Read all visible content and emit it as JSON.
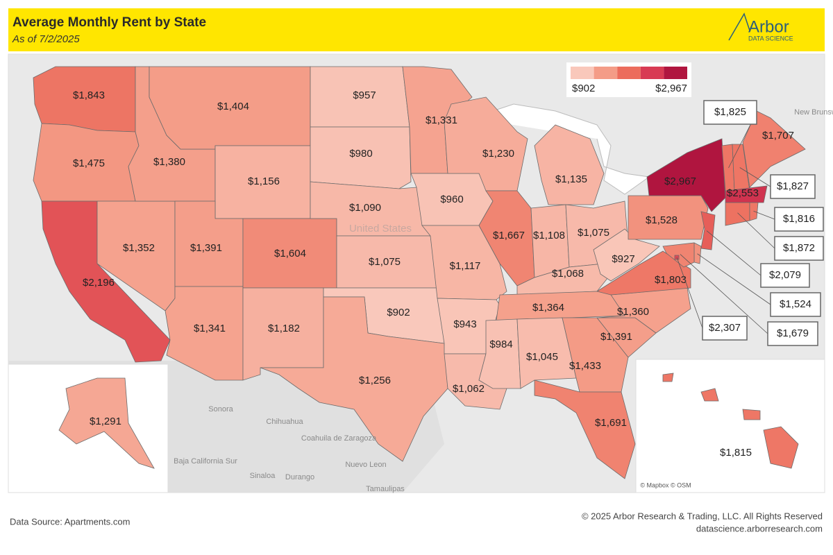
{
  "header": {
    "title": "Average Monthly Rent by State",
    "subtitle": "As of 7/2/2025",
    "logo": "Arbor",
    "logo_tagline": "DATA SCIENCE"
  },
  "chart_data": {
    "type": "choropleth",
    "values": [
      1843,
      1475,
      2196,
      1352,
      1380,
      1404,
      1156,
      1391,
      1341,
      1604,
      1182,
      957,
      980,
      1090,
      1075,
      902,
      1256,
      1331,
      960,
      1117,
      943,
      1062,
      1230,
      1667,
      1135,
      1108,
      1075,
      1068,
      1364,
      984,
      1045,
      1433,
      1691,
      1391,
      1360,
      1803,
      927,
      1528,
      2967,
      1707,
      1825,
      1827,
      2553,
      1872,
      1816,
      2079,
      1524,
      1679,
      2307,
      1291,
      1815
    ],
    "value_labels": [
      "$1,843",
      "$1,475",
      "$2,196",
      "$1,352",
      "$1,380",
      "$1,404",
      "$1,156",
      "$1,391",
      "$1,341",
      "$1,604",
      "$1,182",
      "$957",
      "$980",
      "$1,090",
      "$1,075",
      "$902",
      "$1,256",
      "$1,331",
      "$960",
      "$1,117",
      "$943",
      "$1,062",
      "$1,230",
      "$1,667",
      "$1,135",
      "$1,108",
      "$1,075",
      "$1,068",
      "$1,364",
      "$984",
      "$1,045",
      "$1,433",
      "$1,691",
      "$1,391",
      "$1,360",
      "$1,803",
      "$927",
      "$1,528",
      "$2,967",
      "$1,707",
      "$1,825",
      "$1,827",
      "$2,553",
      "$1,872",
      "$1,816",
      "$2,079",
      "$1,524",
      "$1,679",
      "$2,307",
      "$1,291",
      "$1,815"
    ],
    "colors": [
      "#f9c8bb",
      "#f49c87",
      "#ec6c5c",
      "#d83a53",
      "#b0153f"
    ],
    "legend_range": [
      {
        "value": 902,
        "label": "$902"
      },
      {
        "value": 2967,
        "label": "$2,967"
      }
    ]
  },
  "basemap_labels": [
    "United States",
    "Sonora",
    "Chihuahua",
    "Coahuila de Zaragoza",
    "Baja California Sur",
    "Sinaloa",
    "Durango",
    "Nuevo Leon",
    "Tamaulipas",
    "New Brunsw"
  ],
  "attribution": "© Mapbox © OSM",
  "footer": {
    "source": "Data Source: Apartments.com",
    "copyright": "© 2025 Arbor Research & Trading, LLC. All Rights Reserved",
    "website": "datascience.arborresearch.com"
  }
}
